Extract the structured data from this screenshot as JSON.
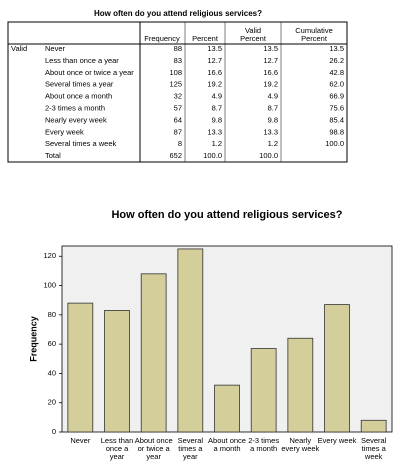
{
  "table": {
    "title": "How often do you attend religious services?",
    "columns": [
      "Frequency",
      "Percent",
      "Valid Percent",
      "Cumulative Percent"
    ],
    "group": "Valid",
    "rows": [
      [
        "Never",
        "88",
        "13.5",
        "13.5",
        "13.5"
      ],
      [
        "Less than once a year",
        "83",
        "12.7",
        "12.7",
        "26.2"
      ],
      [
        "About once or twice a year",
        "108",
        "16.6",
        "16.6",
        "42.8"
      ],
      [
        "Several times a year",
        "125",
        "19.2",
        "19.2",
        "62.0"
      ],
      [
        "About once a month",
        "32",
        "4.9",
        "4.9",
        "66.9"
      ],
      [
        "2-3 times a month",
        "57",
        "8.7",
        "8.7",
        "75.6"
      ],
      [
        "Nearly every week",
        "64",
        "9.8",
        "9.8",
        "85.4"
      ],
      [
        "Every week",
        "87",
        "13.3",
        "13.3",
        "98.8"
      ],
      [
        "Several times a week",
        "8",
        "1.2",
        "1.2",
        "100.0"
      ],
      [
        "Total",
        "652",
        "100.0",
        "100.0"
      ]
    ]
  },
  "chart_data": {
    "type": "bar",
    "title": "How often do you attend religious services?",
    "y_label": "Frequency",
    "categories": [
      "Never",
      "Less than once a year",
      "About once or twice a year",
      "Several times a year",
      "About once a month",
      "2-3 times a month",
      "Nearly every week",
      "Every week",
      "Several times a week"
    ],
    "values": [
      88,
      83,
      108,
      125,
      32,
      57,
      64,
      87,
      8
    ],
    "color": "#d3ce9a",
    "ylim": [
      0,
      127
    ],
    "yticks": [
      0,
      20,
      40,
      60,
      80,
      100,
      120
    ]
  }
}
